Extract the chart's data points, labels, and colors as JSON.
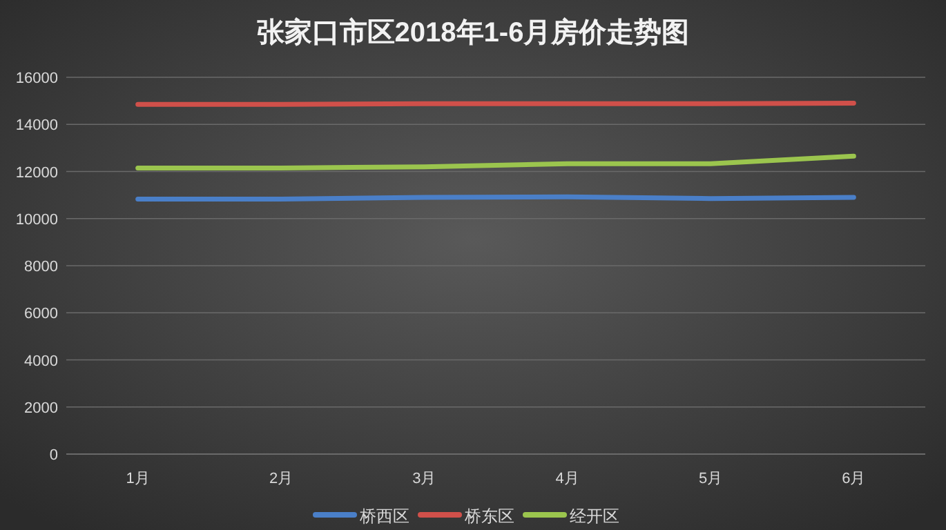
{
  "chart_data": {
    "type": "line",
    "title": "张家口市区2018年1-6月房价走势图",
    "categories": [
      "1月",
      "2月",
      "3月",
      "4月",
      "5月",
      "6月"
    ],
    "series": [
      {
        "name": "桥西区",
        "color": "#4a7fc8",
        "values": [
          10830,
          10830,
          10900,
          10920,
          10850,
          10900
        ]
      },
      {
        "name": "桥东区",
        "color": "#d0504a",
        "values": [
          14850,
          14850,
          14880,
          14880,
          14880,
          14900
        ]
      },
      {
        "name": "经开区",
        "color": "#9bc54e",
        "values": [
          12150,
          12150,
          12200,
          12330,
          12330,
          12650
        ]
      }
    ],
    "ylim": [
      0,
      16000
    ],
    "yticks": [
      0,
      2000,
      4000,
      6000,
      8000,
      10000,
      12000,
      14000,
      16000
    ],
    "grid": "y",
    "legend": "bottom",
    "marker": "none",
    "line_style": "solid"
  }
}
